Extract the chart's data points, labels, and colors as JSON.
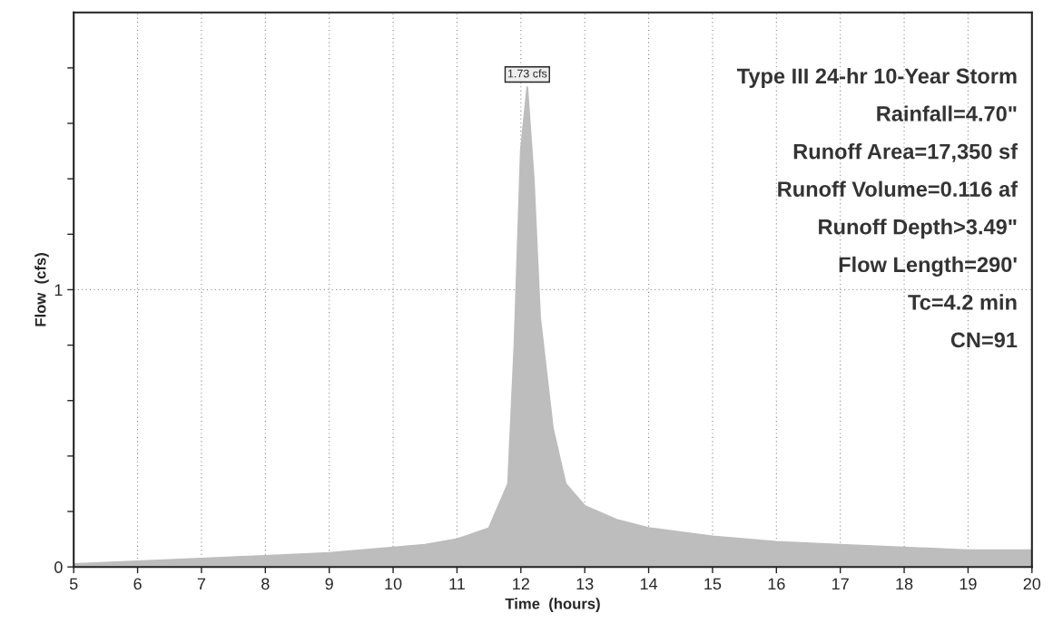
{
  "chart_data": {
    "type": "area",
    "xlabel": "Time  (hours)",
    "ylabel": "Flow  (cfs)",
    "x": [
      5,
      6,
      7,
      8,
      9,
      10,
      10.5,
      11,
      11.5,
      11.8,
      11.9,
      12.0,
      12.1,
      12.2,
      12.3,
      12.5,
      12.7,
      13,
      13.5,
      14,
      15,
      16,
      17,
      18,
      19,
      20
    ],
    "series": [
      {
        "color": "#bdbdbd",
        "values": [
          0.01,
          0.02,
          0.03,
          0.04,
          0.05,
          0.07,
          0.08,
          0.1,
          0.14,
          0.3,
          0.8,
          1.5,
          1.73,
          1.4,
          0.9,
          0.5,
          0.3,
          0.22,
          0.17,
          0.14,
          0.11,
          0.09,
          0.08,
          0.07,
          0.06,
          0.06
        ]
      }
    ],
    "xlim": [
      5,
      20
    ],
    "xticks": [
      5,
      6,
      7,
      8,
      9,
      10,
      11,
      12,
      13,
      14,
      15,
      16,
      17,
      18,
      19,
      20
    ],
    "ylim": [
      0,
      2
    ],
    "yticks": [
      0,
      {
        "value": 0.2,
        "label": null
      },
      {
        "value": 0.4,
        "label": null
      },
      {
        "value": 0.6,
        "label": null
      },
      {
        "value": 0.8,
        "label": null
      },
      1,
      {
        "value": 1.2,
        "label": null
      },
      {
        "value": 1.4,
        "label": null
      },
      {
        "value": 1.6,
        "label": null
      },
      {
        "value": 1.8,
        "label": null
      }
    ],
    "grid": true,
    "legend": false,
    "annotations": [
      {
        "text": "1.73 cfs",
        "x": 12.1,
        "y": 1.73
      },
      "Type III 24-hr 10-Year Storm",
      "Rainfall=4.70\"",
      "Runoff Area=17,350 sf",
      "Runoff Volume=0.116 af",
      "Runoff Depth>3.49\"",
      "Flow Length=290'",
      "Tc=4.2 min",
      "CN=91"
    ]
  }
}
